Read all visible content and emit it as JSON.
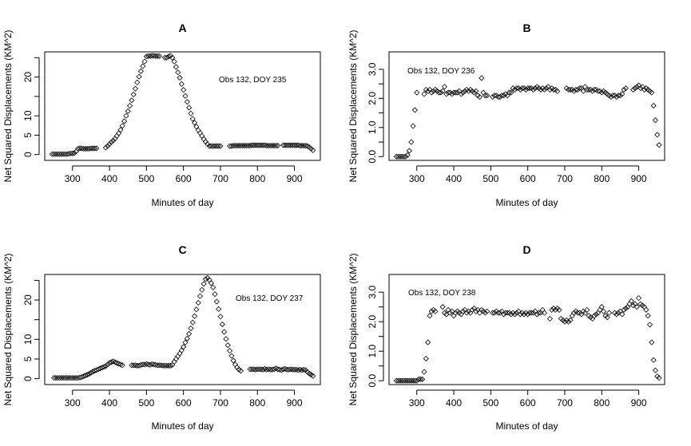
{
  "chart_data": [
    {
      "type": "scatter",
      "title": "A",
      "xlabel": "Minutes of day",
      "ylabel": "Net Squared Displacements (KM^2)",
      "annotation": "Obs 132, DOY 235",
      "xlim": [
        225,
        970
      ],
      "ylim": [
        -1.5,
        26.5
      ],
      "xticks": [
        300,
        400,
        500,
        600,
        700,
        800,
        900
      ],
      "yticks": [
        0,
        5,
        10,
        15,
        20,
        25
      ],
      "yticklabels": [
        "0",
        "5",
        "10",
        "",
        "20",
        ""
      ],
      "grid": false,
      "x": [
        245,
        250,
        255,
        260,
        265,
        270,
        275,
        280,
        285,
        290,
        295,
        300,
        305,
        310,
        315,
        320,
        325,
        330,
        335,
        340,
        345,
        350,
        355,
        360,
        365,
        390,
        395,
        400,
        405,
        410,
        415,
        420,
        425,
        430,
        435,
        440,
        445,
        450,
        455,
        460,
        465,
        470,
        475,
        480,
        485,
        490,
        495,
        500,
        505,
        510,
        515,
        520,
        525,
        530,
        535,
        550,
        555,
        560,
        565,
        570,
        575,
        580,
        585,
        590,
        595,
        600,
        605,
        610,
        615,
        620,
        625,
        630,
        635,
        640,
        645,
        650,
        655,
        660,
        665,
        670,
        675,
        680,
        685,
        690,
        695,
        700,
        725,
        730,
        735,
        740,
        745,
        750,
        755,
        760,
        765,
        770,
        775,
        780,
        785,
        790,
        795,
        800,
        805,
        810,
        815,
        820,
        825,
        830,
        835,
        840,
        845,
        850,
        855,
        870,
        875,
        880,
        885,
        890,
        895,
        900,
        905,
        910,
        915,
        920,
        925,
        930,
        935,
        940,
        945,
        950
      ],
      "y": [
        0.1,
        0.1,
        0.1,
        0.1,
        0.1,
        0.1,
        0.1,
        0.1,
        0.1,
        0.2,
        0.3,
        0.3,
        0.4,
        0.8,
        1.5,
        1.6,
        1.6,
        1.5,
        1.5,
        1.5,
        1.5,
        1.6,
        1.6,
        1.6,
        1.6,
        1.8,
        2.2,
        2.7,
        3.2,
        3.6,
        4.1,
        4.8,
        5.5,
        6.4,
        7.4,
        8.6,
        10.0,
        11.2,
        12.6,
        14.0,
        15.5,
        17.0,
        18.6,
        20.1,
        21.5,
        22.8,
        24.0,
        25.3,
        25.4,
        25.4,
        25.5,
        25.5,
        25.4,
        25.4,
        25.4,
        25.0,
        25.0,
        25.3,
        25.5,
        25.0,
        24.0,
        22.6,
        21.2,
        19.8,
        18.2,
        16.7,
        15.1,
        13.6,
        12.1,
        10.6,
        9.2,
        8.2,
        7.2,
        6.3,
        5.6,
        4.8,
        4.0,
        3.3,
        2.7,
        2.2,
        2.2,
        2.2,
        2.2,
        2.2,
        2.2,
        2.2,
        2.2,
        2.2,
        2.3,
        2.3,
        2.3,
        2.3,
        2.3,
        2.3,
        2.3,
        2.3,
        2.3,
        2.3,
        2.4,
        2.4,
        2.4,
        2.4,
        2.4,
        2.4,
        2.4,
        2.4,
        2.3,
        2.3,
        2.3,
        2.3,
        2.3,
        2.3,
        2.3,
        2.4,
        2.4,
        2.4,
        2.4,
        2.4,
        2.4,
        2.4,
        2.4,
        2.4,
        2.3,
        2.3,
        2.3,
        2.3,
        2.2,
        1.9,
        1.5,
        1.1
      ]
    },
    {
      "type": "scatter",
      "title": "B",
      "xlabel": "Minutes of day",
      "ylabel": "Net Squared Displacements (KM^2)",
      "annotation": "Obs 132, DOY 236",
      "xlim": [
        225,
        970
      ],
      "ylim": [
        -0.13,
        3.6
      ],
      "xticks": [
        300,
        400,
        500,
        600,
        700,
        800,
        900
      ],
      "yticks": [
        0,
        0.5,
        1,
        1.5,
        2,
        2.5,
        3
      ],
      "yticklabels": [
        "0.0",
        "",
        "1.0",
        "",
        "2.0",
        "",
        "3.0"
      ],
      "grid": false,
      "x": [
        245,
        250,
        255,
        260,
        265,
        270,
        275,
        280,
        285,
        290,
        295,
        300,
        320,
        325,
        330,
        335,
        340,
        345,
        350,
        355,
        360,
        365,
        370,
        375,
        380,
        385,
        390,
        395,
        400,
        405,
        410,
        415,
        420,
        425,
        430,
        435,
        440,
        445,
        450,
        455,
        460,
        465,
        470,
        475,
        480,
        485,
        490,
        505,
        510,
        515,
        520,
        525,
        530,
        535,
        540,
        545,
        550,
        555,
        560,
        565,
        570,
        575,
        580,
        585,
        590,
        595,
        600,
        605,
        610,
        615,
        620,
        625,
        630,
        635,
        640,
        645,
        650,
        655,
        660,
        665,
        670,
        675,
        680,
        705,
        710,
        715,
        720,
        725,
        730,
        735,
        740,
        745,
        750,
        755,
        760,
        765,
        770,
        775,
        780,
        785,
        790,
        795,
        800,
        805,
        810,
        815,
        820,
        825,
        830,
        835,
        840,
        845,
        850,
        855,
        860,
        865,
        885,
        890,
        895,
        900,
        905,
        910,
        915,
        920,
        925,
        930,
        935,
        940,
        945,
        950,
        955
      ],
      "y": [
        0,
        0,
        0,
        0,
        0,
        0,
        0.05,
        0.2,
        0.5,
        1.05,
        1.6,
        2.2,
        2.15,
        2.3,
        2.25,
        2.3,
        2.2,
        2.25,
        2.3,
        2.25,
        2.2,
        2.2,
        2.25,
        2.4,
        2.15,
        2.2,
        2.2,
        2.15,
        2.2,
        2.2,
        2.2,
        2.25,
        2.15,
        2.2,
        2.25,
        2.3,
        2.25,
        2.3,
        2.25,
        2.2,
        2.25,
        2.1,
        2.05,
        2.7,
        2.2,
        2.1,
        2.1,
        2.05,
        2.1,
        2.1,
        2.05,
        2.05,
        2.1,
        2.1,
        2.15,
        2.1,
        2.2,
        2.2,
        2.35,
        2.3,
        2.35,
        2.35,
        2.3,
        2.35,
        2.35,
        2.3,
        2.35,
        2.35,
        2.35,
        2.3,
        2.35,
        2.4,
        2.35,
        2.3,
        2.35,
        2.3,
        2.35,
        2.4,
        2.3,
        2.35,
        2.3,
        2.3,
        2.25,
        2.35,
        2.3,
        2.3,
        2.3,
        2.25,
        2.3,
        2.3,
        2.35,
        2.35,
        2.25,
        2.4,
        2.3,
        2.3,
        2.3,
        2.25,
        2.3,
        2.3,
        2.25,
        2.25,
        2.2,
        2.25,
        2.2,
        2.15,
        2.1,
        2.05,
        2.1,
        2.1,
        2.05,
        2.1,
        2.1,
        2.15,
        2.3,
        2.35,
        2.3,
        2.35,
        2.4,
        2.45,
        2.35,
        2.4,
        2.3,
        2.35,
        2.3,
        2.25,
        2.2,
        1.75,
        1.25,
        0.75,
        0.4
      ]
    },
    {
      "type": "scatter",
      "title": "C",
      "xlabel": "Minutes of day",
      "ylabel": "Net Squared Displacements (KM^2)",
      "annotation": "Obs 132, DOY 237",
      "xlim": [
        225,
        970
      ],
      "ylim": [
        -1.5,
        26.5
      ],
      "xticks": [
        300,
        400,
        500,
        600,
        700,
        800,
        900
      ],
      "yticks": [
        0,
        5,
        10,
        15,
        20,
        25
      ],
      "yticklabels": [
        "0",
        "5",
        "10",
        "",
        "20",
        ""
      ],
      "grid": false,
      "x": [
        250,
        255,
        260,
        265,
        270,
        275,
        280,
        285,
        290,
        295,
        300,
        305,
        310,
        315,
        320,
        325,
        330,
        335,
        340,
        345,
        350,
        355,
        360,
        365,
        370,
        375,
        380,
        385,
        390,
        395,
        400,
        405,
        410,
        415,
        420,
        425,
        430,
        435,
        460,
        465,
        470,
        475,
        480,
        485,
        490,
        495,
        500,
        505,
        510,
        515,
        520,
        525,
        530,
        535,
        540,
        545,
        550,
        555,
        560,
        565,
        570,
        575,
        580,
        585,
        590,
        595,
        600,
        605,
        610,
        615,
        620,
        625,
        630,
        635,
        640,
        645,
        650,
        655,
        660,
        665,
        670,
        675,
        680,
        685,
        690,
        695,
        700,
        705,
        710,
        715,
        720,
        725,
        730,
        735,
        740,
        745,
        750,
        755,
        780,
        785,
        790,
        795,
        800,
        805,
        810,
        815,
        820,
        825,
        830,
        835,
        840,
        845,
        850,
        855,
        860,
        865,
        870,
        875,
        880,
        885,
        890,
        895,
        900,
        905,
        910,
        915,
        920,
        925,
        930,
        935,
        940,
        945,
        950
      ],
      "y": [
        0.2,
        0.2,
        0.2,
        0.2,
        0.2,
        0.2,
        0.2,
        0.2,
        0.2,
        0.2,
        0.2,
        0.2,
        0.2,
        0.2,
        0.3,
        0.4,
        0.6,
        0.8,
        1.0,
        1.2,
        1.5,
        1.8,
        2.0,
        2.2,
        2.4,
        2.6,
        2.8,
        3.0,
        3.2,
        3.6,
        4.0,
        4.2,
        4.4,
        4.2,
        4.0,
        3.8,
        3.6,
        3.4,
        3.4,
        3.4,
        3.4,
        3.3,
        3.3,
        3.5,
        3.6,
        3.6,
        3.7,
        3.6,
        3.5,
        3.7,
        3.6,
        3.5,
        3.4,
        3.4,
        3.4,
        3.3,
        3.3,
        3.3,
        3.3,
        3.3,
        3.5,
        4.3,
        5.0,
        5.7,
        6.4,
        7.2,
        8.1,
        9.2,
        10.2,
        11.4,
        12.8,
        14.3,
        15.9,
        17.6,
        19.3,
        21.0,
        22.6,
        24.1,
        25.3,
        25.6,
        25.1,
        24.3,
        23.2,
        21.5,
        19.6,
        17.7,
        15.8,
        13.8,
        11.9,
        10.1,
        8.5,
        7.1,
        5.8,
        4.6,
        3.6,
        2.9,
        2.3,
        2.0,
        2.4,
        2.4,
        2.4,
        2.3,
        2.4,
        2.4,
        2.4,
        2.3,
        2.5,
        2.3,
        2.4,
        2.3,
        2.3,
        2.4,
        2.6,
        2.4,
        2.3,
        2.2,
        2.4,
        2.5,
        2.3,
        2.3,
        2.4,
        2.3,
        2.3,
        2.3,
        2.2,
        2.3,
        2.2,
        2.3,
        2.2,
        1.7,
        1.3,
        1.0,
        0.7
      ]
    },
    {
      "type": "scatter",
      "title": "D",
      "xlabel": "Minutes of day",
      "ylabel": "Net Squared Displacements (KM^2)",
      "annotation": "Obs 132, DOY 238",
      "xlim": [
        225,
        970
      ],
      "ylim": [
        -0.13,
        3.6
      ],
      "xticks": [
        300,
        400,
        500,
        600,
        700,
        800,
        900
      ],
      "yticks": [
        0,
        0.5,
        1,
        1.5,
        2,
        2.5,
        3
      ],
      "yticklabels": [
        "0.0",
        "",
        "1.0",
        "",
        "2.0",
        "",
        "3.0"
      ],
      "grid": false,
      "x": [
        245,
        250,
        255,
        260,
        265,
        270,
        275,
        280,
        285,
        290,
        295,
        300,
        305,
        310,
        315,
        320,
        325,
        330,
        335,
        340,
        345,
        350,
        370,
        375,
        380,
        385,
        390,
        395,
        400,
        405,
        410,
        415,
        420,
        425,
        430,
        435,
        440,
        445,
        450,
        455,
        460,
        465,
        470,
        475,
        480,
        485,
        490,
        505,
        510,
        515,
        520,
        525,
        530,
        535,
        540,
        545,
        550,
        555,
        560,
        565,
        570,
        575,
        580,
        585,
        590,
        595,
        600,
        605,
        610,
        615,
        620,
        625,
        630,
        635,
        640,
        645,
        660,
        665,
        670,
        675,
        680,
        685,
        690,
        695,
        700,
        705,
        710,
        715,
        720,
        725,
        730,
        735,
        740,
        745,
        750,
        755,
        760,
        765,
        770,
        775,
        780,
        785,
        790,
        795,
        800,
        805,
        810,
        815,
        820,
        835,
        840,
        845,
        850,
        855,
        860,
        865,
        870,
        875,
        880,
        885,
        890,
        895,
        900,
        905,
        910,
        915,
        920,
        925,
        930,
        935,
        940,
        945,
        950,
        955
      ],
      "y": [
        0,
        0,
        0,
        0,
        0,
        0,
        0,
        0,
        0,
        0,
        0,
        0,
        0.05,
        0.05,
        0.05,
        0.3,
        0.75,
        1.3,
        2.2,
        2.35,
        2.4,
        2.35,
        2.5,
        2.3,
        2.25,
        2.4,
        2.3,
        2.35,
        2.2,
        2.3,
        2.35,
        2.3,
        2.25,
        2.35,
        2.4,
        2.3,
        2.35,
        2.3,
        2.4,
        2.45,
        2.35,
        2.4,
        2.3,
        2.4,
        2.35,
        2.3,
        2.35,
        2.3,
        2.3,
        2.35,
        2.3,
        2.3,
        2.35,
        2.25,
        2.3,
        2.3,
        2.3,
        2.25,
        2.3,
        2.25,
        2.3,
        2.35,
        2.25,
        2.3,
        2.25,
        2.3,
        2.25,
        2.3,
        2.3,
        2.3,
        2.35,
        2.25,
        2.3,
        2.3,
        2.4,
        2.3,
        2.1,
        2.4,
        2.45,
        2.4,
        2.45,
        2.4,
        2.1,
        2.05,
        2.0,
        2.05,
        2.0,
        2.05,
        2.2,
        2.3,
        2.35,
        2.3,
        2.3,
        2.25,
        2.35,
        2.3,
        2.4,
        2.2,
        2.15,
        2.1,
        2.2,
        2.25,
        2.3,
        2.4,
        2.5,
        2.35,
        2.2,
        2.15,
        2.3,
        2.3,
        2.25,
        2.3,
        2.35,
        2.25,
        2.4,
        2.45,
        2.5,
        2.6,
        2.7,
        2.55,
        2.6,
        2.5,
        2.8,
        2.6,
        2.55,
        2.5,
        2.4,
        2.2,
        1.9,
        1.3,
        0.7,
        0.35,
        0.15,
        0.1
      ]
    }
  ]
}
